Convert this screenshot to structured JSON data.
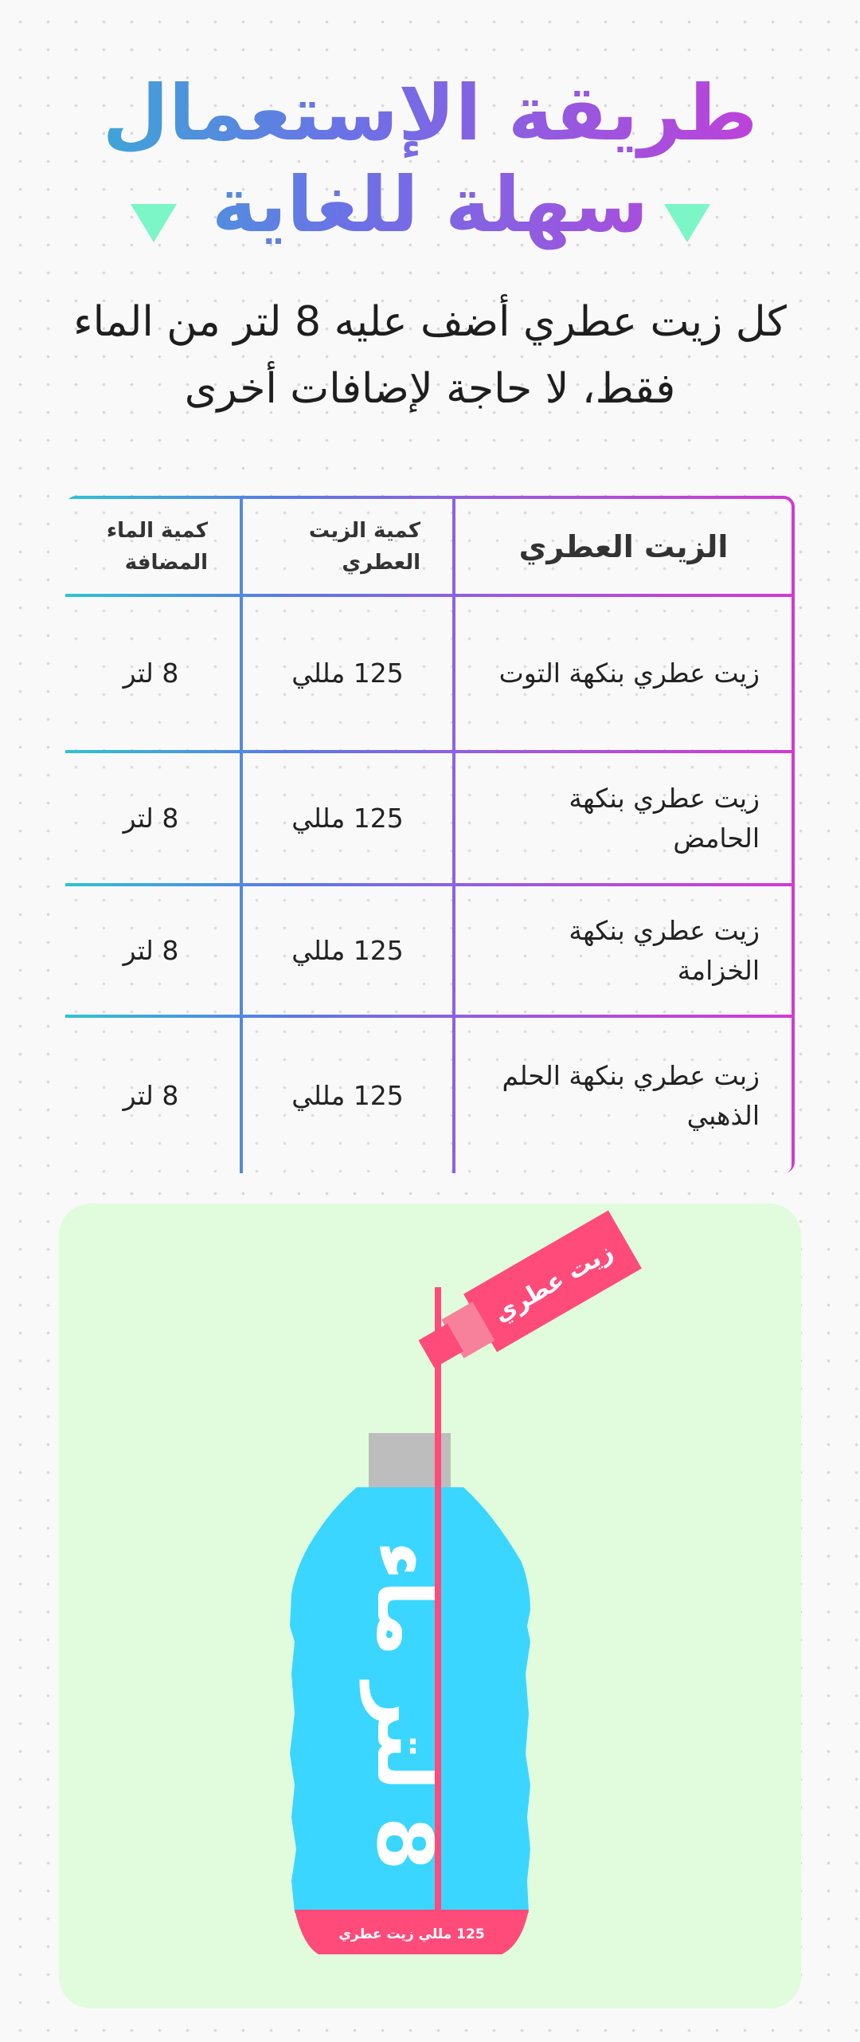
{
  "title": {
    "line1": "طريقة الإستعمال",
    "line2": "سهلة للغاية"
  },
  "subtitle": {
    "line1": "كل زيت عطري أضف عليه 8 لتر من الماء",
    "line2": "فقط، لا حاجة لإضافات أخرى"
  },
  "table": {
    "headers": [
      "الزيت العطري",
      "كمية الزيت العطري",
      "كمية الماء المضافة"
    ],
    "rows": [
      [
        "زيت عطري بنكهة التوت",
        "125 مللي",
        "8 لتر"
      ],
      [
        "زيت عطري بنكهة الحامض",
        "125 مللي",
        "8 لتر"
      ],
      [
        "زيت عطري بنكهة الخزامة",
        "125 مللي",
        "8 لتر"
      ],
      [
        "زبت عطري بنكهة الحلم الذهبي",
        "125 مللي",
        "8 لتر"
      ]
    ]
  },
  "illustration": {
    "oil_bottle_label": "زيت عطري",
    "water_bottle_label": "8 لتر ماء",
    "bottom_band_label": "125 مللي زيت عطري",
    "colors": {
      "panel": "#e0fcdc",
      "water": "#3bd6ff",
      "oil": "#ff4b7a",
      "cap": "#bdbdbd",
      "accent_triangle": "#7cf6c6"
    }
  }
}
